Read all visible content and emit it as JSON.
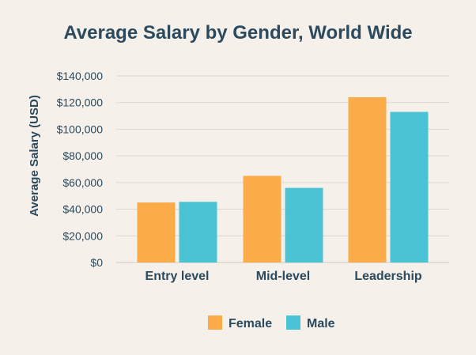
{
  "chart_data": {
    "type": "bar",
    "title": "Average Salary by Gender, World Wide",
    "xlabel": "",
    "ylabel": "Average Salary (USD)",
    "ylim": [
      0,
      140000
    ],
    "yticks": [
      0,
      20000,
      40000,
      60000,
      80000,
      100000,
      120000,
      140000
    ],
    "ytick_labels": [
      "$0",
      "$20,000",
      "$40,000",
      "$60,000",
      "$80,000",
      "$100,000",
      "$120,000",
      "$140,000"
    ],
    "categories": [
      "Entry level",
      "Mid-level",
      "Leadership"
    ],
    "series": [
      {
        "name": "Female",
        "color": "#fbab47",
        "values": [
          45000,
          65000,
          124000
        ]
      },
      {
        "name": "Male",
        "color": "#4ac4d4",
        "values": [
          45500,
          56000,
          113000
        ]
      }
    ],
    "grid": true,
    "legend_position": "bottom"
  }
}
